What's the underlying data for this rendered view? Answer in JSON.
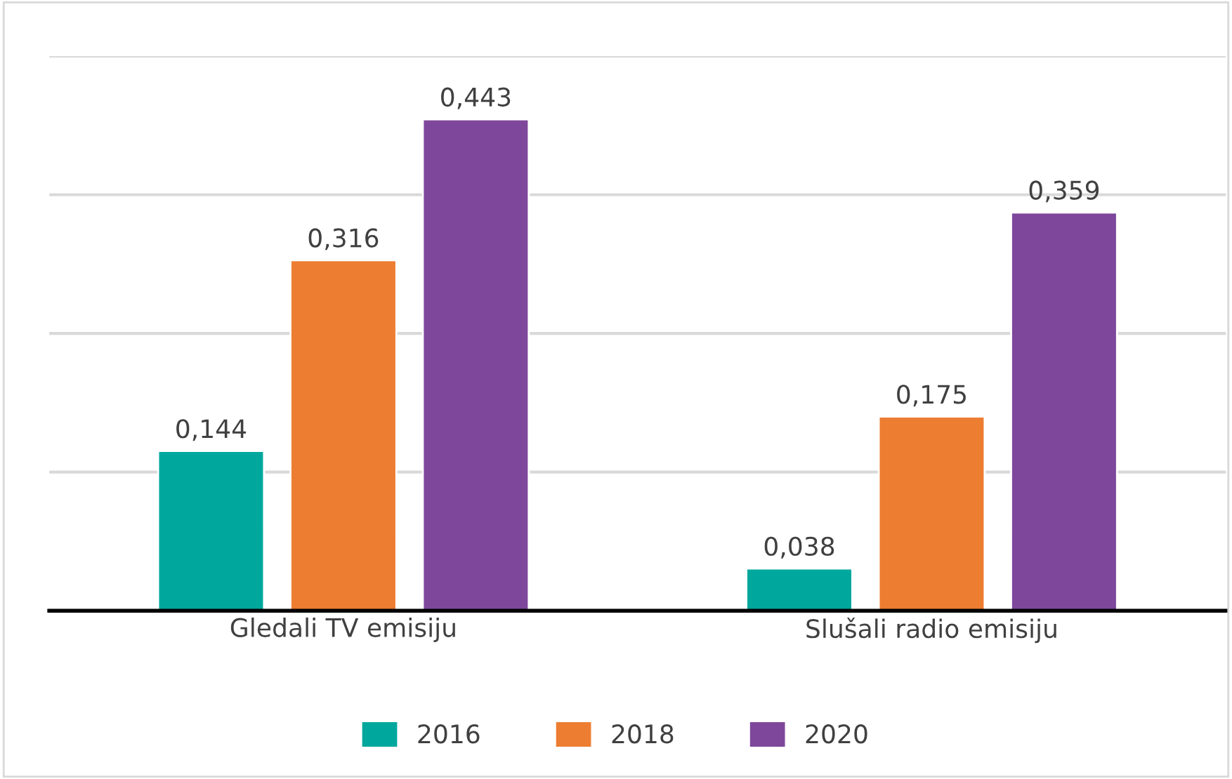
{
  "chart_data": {
    "type": "bar",
    "categories": [
      "Gledali TV emisiju",
      "Slušali radio emisiju"
    ],
    "series": [
      {
        "name": "2016",
        "color": "#00a79d",
        "values": [
          0.144,
          0.038
        ],
        "value_labels": [
          "0,144",
          "0,038"
        ]
      },
      {
        "name": "2018",
        "color": "#ed7d31",
        "values": [
          0.316,
          0.175
        ],
        "value_labels": [
          "0,316",
          "0,175"
        ]
      },
      {
        "name": "2020",
        "color": "#7e479b",
        "values": [
          0.443,
          0.359
        ],
        "value_labels": [
          "0,443",
          "0,359"
        ]
      }
    ],
    "ylim": [
      0,
      0.5
    ],
    "yticks": [
      {
        "value": 0,
        "label": null
      },
      {
        "value": 0.125,
        "label": null
      },
      {
        "value": 0.25,
        "label": null
      },
      {
        "value": 0.375,
        "label": null
      },
      {
        "value": 0.5,
        "label": null
      }
    ],
    "grid": "y",
    "legend": "bottom",
    "tick_labels": "x"
  }
}
